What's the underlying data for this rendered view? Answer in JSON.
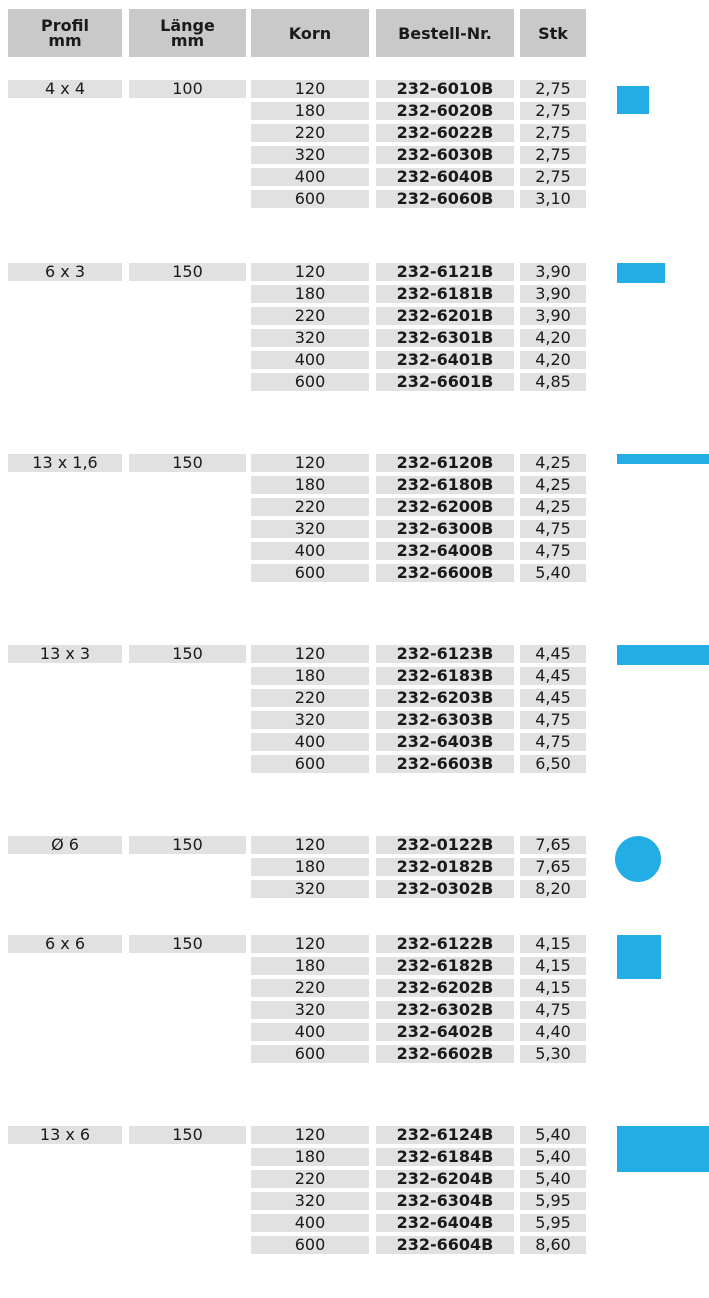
{
  "header": {
    "profil": [
      "Profil",
      "mm"
    ],
    "laenge": [
      "Länge",
      "mm"
    ],
    "korn": "Korn",
    "bestell": "Bestell-Nr.",
    "stk": "Stk"
  },
  "colors": {
    "header_bg": "#c9c9c9",
    "cell_bg": "#e1e1e1",
    "swatch": "#22ade4"
  },
  "groups": [
    {
      "profil": "4 x 4",
      "laenge": "100",
      "swatch": "square-small",
      "rows": [
        [
          "120",
          "232-6010B",
          "2,75"
        ],
        [
          "180",
          "232-6020B",
          "2,75"
        ],
        [
          "220",
          "232-6022B",
          "2,75"
        ],
        [
          "320",
          "232-6030B",
          "2,75"
        ],
        [
          "400",
          "232-6040B",
          "2,75"
        ],
        [
          "600",
          "232-6060B",
          "3,10"
        ]
      ]
    },
    {
      "profil": "6 x 3",
      "laenge": "150",
      "swatch": "rect-flat",
      "rows": [
        [
          "120",
          "232-6121B",
          "3,90"
        ],
        [
          "180",
          "232-6181B",
          "3,90"
        ],
        [
          "220",
          "232-6201B",
          "3,90"
        ],
        [
          "320",
          "232-6301B",
          "4,20"
        ],
        [
          "400",
          "232-6401B",
          "4,20"
        ],
        [
          "600",
          "232-6601B",
          "4,85"
        ]
      ]
    },
    {
      "profil": "13 x 1,6",
      "laenge": "150",
      "swatch": "strip-thin",
      "rows": [
        [
          "120",
          "232-6120B",
          "4,25"
        ],
        [
          "180",
          "232-6180B",
          "4,25"
        ],
        [
          "220",
          "232-6200B",
          "4,25"
        ],
        [
          "320",
          "232-6300B",
          "4,75"
        ],
        [
          "400",
          "232-6400B",
          "4,75"
        ],
        [
          "600",
          "232-6600B",
          "5,40"
        ]
      ]
    },
    {
      "profil": "13 x 3",
      "laenge": "150",
      "swatch": "rect-wide",
      "rows": [
        [
          "120",
          "232-6123B",
          "4,45"
        ],
        [
          "180",
          "232-6183B",
          "4,45"
        ],
        [
          "220",
          "232-6203B",
          "4,45"
        ],
        [
          "320",
          "232-6303B",
          "4,75"
        ],
        [
          "400",
          "232-6403B",
          "4,75"
        ],
        [
          "600",
          "232-6603B",
          "6,50"
        ]
      ]
    },
    {
      "profil": "Ø 6",
      "laenge": "150",
      "swatch": "circle",
      "rows": [
        [
          "120",
          "232-0122B",
          "7,65"
        ],
        [
          "180",
          "232-0182B",
          "7,65"
        ],
        [
          "320",
          "232-0302B",
          "8,20"
        ]
      ]
    },
    {
      "profil": "6 x 6",
      "laenge": "150",
      "swatch": "square-large",
      "rows": [
        [
          "120",
          "232-6122B",
          "4,15"
        ],
        [
          "180",
          "232-6182B",
          "4,15"
        ],
        [
          "220",
          "232-6202B",
          "4,15"
        ],
        [
          "320",
          "232-6302B",
          "4,75"
        ],
        [
          "400",
          "232-6402B",
          "4,40"
        ],
        [
          "600",
          "232-6602B",
          "5,30"
        ]
      ]
    },
    {
      "profil": "13 x 6",
      "laenge": "150",
      "swatch": "rect-large",
      "rows": [
        [
          "120",
          "232-6124B",
          "5,40"
        ],
        [
          "180",
          "232-6184B",
          "5,40"
        ],
        [
          "220",
          "232-6204B",
          "5,40"
        ],
        [
          "320",
          "232-6304B",
          "5,95"
        ],
        [
          "400",
          "232-6404B",
          "5,95"
        ],
        [
          "600",
          "232-6604B",
          "8,60"
        ]
      ]
    }
  ]
}
